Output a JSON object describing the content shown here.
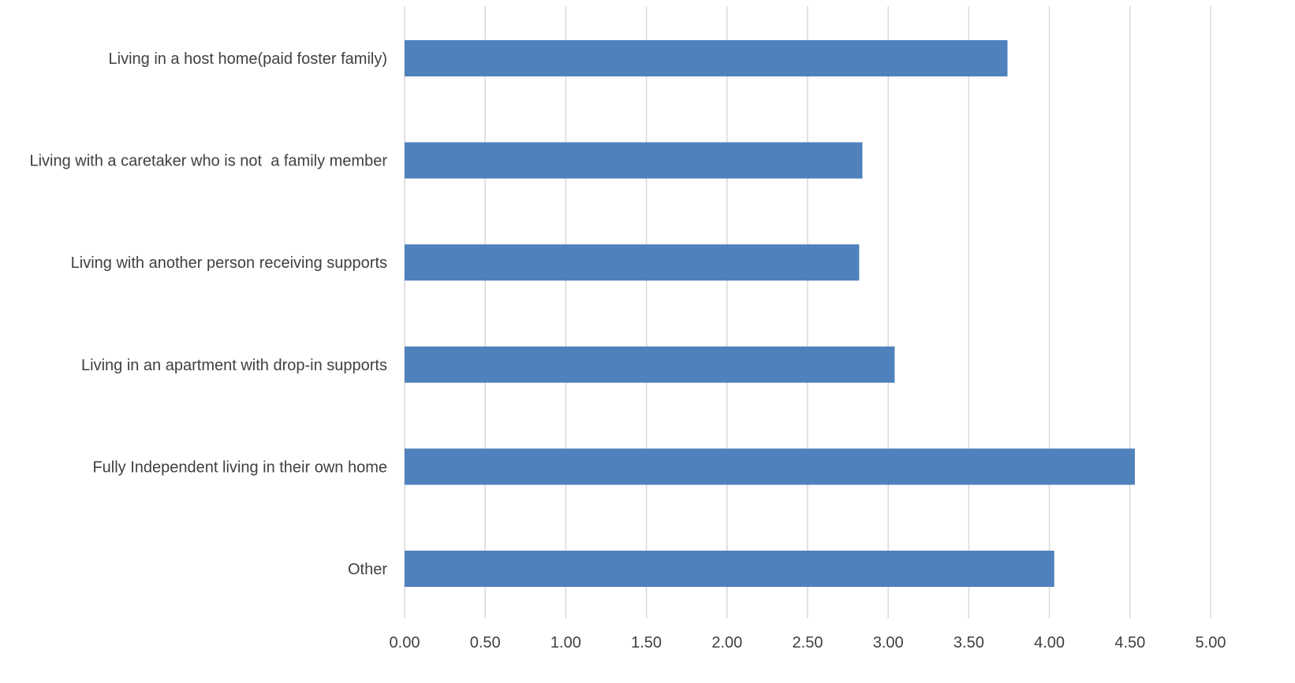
{
  "chart_data": {
    "type": "bar",
    "orientation": "horizontal",
    "title": "",
    "xlabel": "",
    "ylabel": "",
    "categories": [
      "Living in a host home(paid foster family)",
      "Living with a caretaker who is not  a family member",
      "Living with another person receiving supports",
      "Living in an apartment with drop-in supports",
      "Fully Independent living in their own home",
      "Other"
    ],
    "values": [
      3.74,
      2.84,
      2.82,
      3.04,
      4.53,
      4.03
    ],
    "xlim": [
      0,
      5
    ],
    "tick_step": 0.5,
    "tick_labels": [
      "0.00",
      "0.50",
      "1.00",
      "1.50",
      "2.00",
      "2.50",
      "3.00",
      "3.50",
      "4.00",
      "4.50",
      "5.00"
    ],
    "grid": "vertical",
    "legend": "none",
    "bar_color": "#4f81bd",
    "grid_color": "#d9d9d9",
    "text_color": "#404040"
  }
}
